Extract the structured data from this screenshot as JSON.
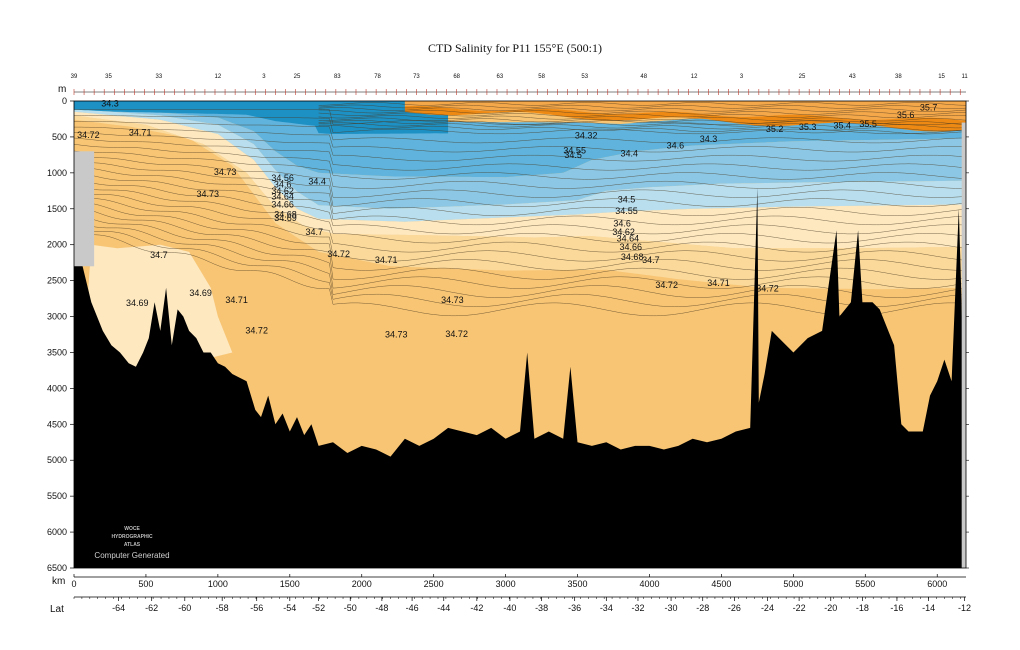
{
  "chart_data": {
    "type": "contour-section",
    "title": "CTD Salinity for P11 155°E (500:1)",
    "ylabel": "m",
    "xlabel": "km",
    "lat_label": "Lat",
    "xlim": [
      0,
      6200
    ],
    "ylim": [
      0,
      6500
    ],
    "x_ticks": [
      0,
      500,
      1000,
      1500,
      2000,
      2500,
      3000,
      3500,
      4000,
      4500,
      5000,
      5500,
      6000
    ],
    "y_ticks": [
      0,
      500,
      1000,
      1500,
      2000,
      2500,
      3000,
      3500,
      4000,
      4500,
      5000,
      5500,
      6000,
      6500
    ],
    "lat_ticks": [
      {
        "km": 310,
        "label": "-64"
      },
      {
        "km": 540,
        "label": "-62"
      },
      {
        "km": 770,
        "label": "-60"
      },
      {
        "km": 1030,
        "label": "-58"
      },
      {
        "km": 1270,
        "label": "-56"
      },
      {
        "km": 1500,
        "label": "-54"
      },
      {
        "km": 1700,
        "label": "-52"
      },
      {
        "km": 1920,
        "label": "-50"
      },
      {
        "km": 2140,
        "label": "-48"
      },
      {
        "km": 2350,
        "label": "-46"
      },
      {
        "km": 2570,
        "label": "-44"
      },
      {
        "km": 2800,
        "label": "-42"
      },
      {
        "km": 3030,
        "label": "-40"
      },
      {
        "km": 3250,
        "label": "-38"
      },
      {
        "km": 3480,
        "label": "-36"
      },
      {
        "km": 3700,
        "label": "-34"
      },
      {
        "km": 3920,
        "label": "-32"
      },
      {
        "km": 4150,
        "label": "-30"
      },
      {
        "km": 4370,
        "label": "-28"
      },
      {
        "km": 4590,
        "label": "-26"
      },
      {
        "km": 4820,
        "label": "-24"
      },
      {
        "km": 5040,
        "label": "-22"
      },
      {
        "km": 5260,
        "label": "-20"
      },
      {
        "km": 5480,
        "label": "-18"
      },
      {
        "km": 5720,
        "label": "-16"
      },
      {
        "km": 5940,
        "label": "-14"
      },
      {
        "km": 6190,
        "label": "-12"
      }
    ],
    "station_labels": [
      {
        "km": 0,
        "label": "39"
      },
      {
        "km": 240,
        "label": "35"
      },
      {
        "km": 590,
        "label": "33"
      },
      {
        "km": 1000,
        "label": "12"
      },
      {
        "km": 1320,
        "label": "3"
      },
      {
        "km": 1550,
        "label": "25"
      },
      {
        "km": 1830,
        "label": "83"
      },
      {
        "km": 2110,
        "label": "78"
      },
      {
        "km": 2380,
        "label": "73"
      },
      {
        "km": 2660,
        "label": "68"
      },
      {
        "km": 2960,
        "label": "63"
      },
      {
        "km": 3250,
        "label": "58"
      },
      {
        "km": 3550,
        "label": "53"
      },
      {
        "km": 3960,
        "label": "48"
      },
      {
        "km": 4310,
        "label": "12"
      },
      {
        "km": 4640,
        "label": "3"
      },
      {
        "km": 5060,
        "label": "25"
      },
      {
        "km": 5410,
        "label": "43"
      },
      {
        "km": 5730,
        "label": "38"
      },
      {
        "km": 6030,
        "label": "15"
      },
      {
        "km": 6190,
        "label": "11"
      }
    ],
    "color_bands": [
      {
        "name": "fresh",
        "color": "#1d90c4"
      },
      {
        "name": "fresh2",
        "color": "#5fb3dc"
      },
      {
        "name": "mid-blue",
        "color": "#8cc8e6"
      },
      {
        "name": "light-blue",
        "color": "#b9dfef"
      },
      {
        "name": "pale",
        "color": "#fde8c0"
      },
      {
        "name": "light-orange",
        "color": "#fbd99a"
      },
      {
        "name": "orange",
        "color": "#f8c574"
      },
      {
        "name": "salty",
        "color": "#f29c2e"
      },
      {
        "name": "saltiest",
        "color": "#ee8a14"
      },
      {
        "name": "bottom",
        "color": "#000000"
      },
      {
        "name": "no-data",
        "color": "#c9c9c9"
      }
    ],
    "contour_labels": [
      {
        "x": 250,
        "y": 40,
        "text": "34.3"
      },
      {
        "x": 100,
        "y": 480,
        "text": "34.72"
      },
      {
        "x": 460,
        "y": 450,
        "text": "34.71"
      },
      {
        "x": 1050,
        "y": 1000,
        "text": "34.73"
      },
      {
        "x": 930,
        "y": 1300,
        "text": "34.73"
      },
      {
        "x": 1450,
        "y": 1080,
        "text": "34.56"
      },
      {
        "x": 1690,
        "y": 1130,
        "text": "34.4"
      },
      {
        "x": 1450,
        "y": 1170,
        "text": "34.6"
      },
      {
        "x": 1450,
        "y": 1260,
        "text": "34.62"
      },
      {
        "x": 1450,
        "y": 1340,
        "text": "34.64"
      },
      {
        "x": 1450,
        "y": 1450,
        "text": "34.66"
      },
      {
        "x": 1470,
        "y": 1590,
        "text": "34.68"
      },
      {
        "x": 1470,
        "y": 1640,
        "text": "34.69"
      },
      {
        "x": 1670,
        "y": 1830,
        "text": "34.7"
      },
      {
        "x": 1840,
        "y": 2140,
        "text": "34.72"
      },
      {
        "x": 2170,
        "y": 2220,
        "text": "34.71"
      },
      {
        "x": 590,
        "y": 2150,
        "text": "34.7"
      },
      {
        "x": 440,
        "y": 2820,
        "text": "34.69"
      },
      {
        "x": 880,
        "y": 2680,
        "text": "34.69"
      },
      {
        "x": 1130,
        "y": 2780,
        "text": "34.71"
      },
      {
        "x": 1270,
        "y": 3200,
        "text": "34.72"
      },
      {
        "x": 2240,
        "y": 3260,
        "text": "34.73"
      },
      {
        "x": 2630,
        "y": 2780,
        "text": "34.73"
      },
      {
        "x": 2660,
        "y": 3250,
        "text": "34.72"
      },
      {
        "x": 3560,
        "y": 490,
        "text": "34.32"
      },
      {
        "x": 3480,
        "y": 700,
        "text": "34.55"
      },
      {
        "x": 3470,
        "y": 760,
        "text": "34.5"
      },
      {
        "x": 3860,
        "y": 740,
        "text": "34.4"
      },
      {
        "x": 4180,
        "y": 630,
        "text": "34.6"
      },
      {
        "x": 4410,
        "y": 540,
        "text": "34.3"
      },
      {
        "x": 4870,
        "y": 400,
        "text": "35.2"
      },
      {
        "x": 5100,
        "y": 370,
        "text": "35.3"
      },
      {
        "x": 5340,
        "y": 350,
        "text": "35.4"
      },
      {
        "x": 5520,
        "y": 330,
        "text": "35.5"
      },
      {
        "x": 5780,
        "y": 200,
        "text": "35.6"
      },
      {
        "x": 5940,
        "y": 100,
        "text": "35.7"
      },
      {
        "x": 3840,
        "y": 1380,
        "text": "34.5"
      },
      {
        "x": 3840,
        "y": 1540,
        "text": "34.55"
      },
      {
        "x": 3810,
        "y": 1710,
        "text": "34.6"
      },
      {
        "x": 3820,
        "y": 1830,
        "text": "34.62"
      },
      {
        "x": 3850,
        "y": 1920,
        "text": "34.64"
      },
      {
        "x": 3870,
        "y": 2040,
        "text": "34.66"
      },
      {
        "x": 3880,
        "y": 2180,
        "text": "34.68"
      },
      {
        "x": 4010,
        "y": 2220,
        "text": "34.7"
      },
      {
        "x": 4120,
        "y": 2570,
        "text": "34.72"
      },
      {
        "x": 4480,
        "y": 2540,
        "text": "34.71"
      },
      {
        "x": 4820,
        "y": 2620,
        "text": "34.72"
      }
    ]
  },
  "credit": {
    "logo_line1": "WOCE",
    "logo_line2": "HYDROGRAPHIC",
    "logo_line3": "ATLAS",
    "text": "Computer Generated"
  }
}
